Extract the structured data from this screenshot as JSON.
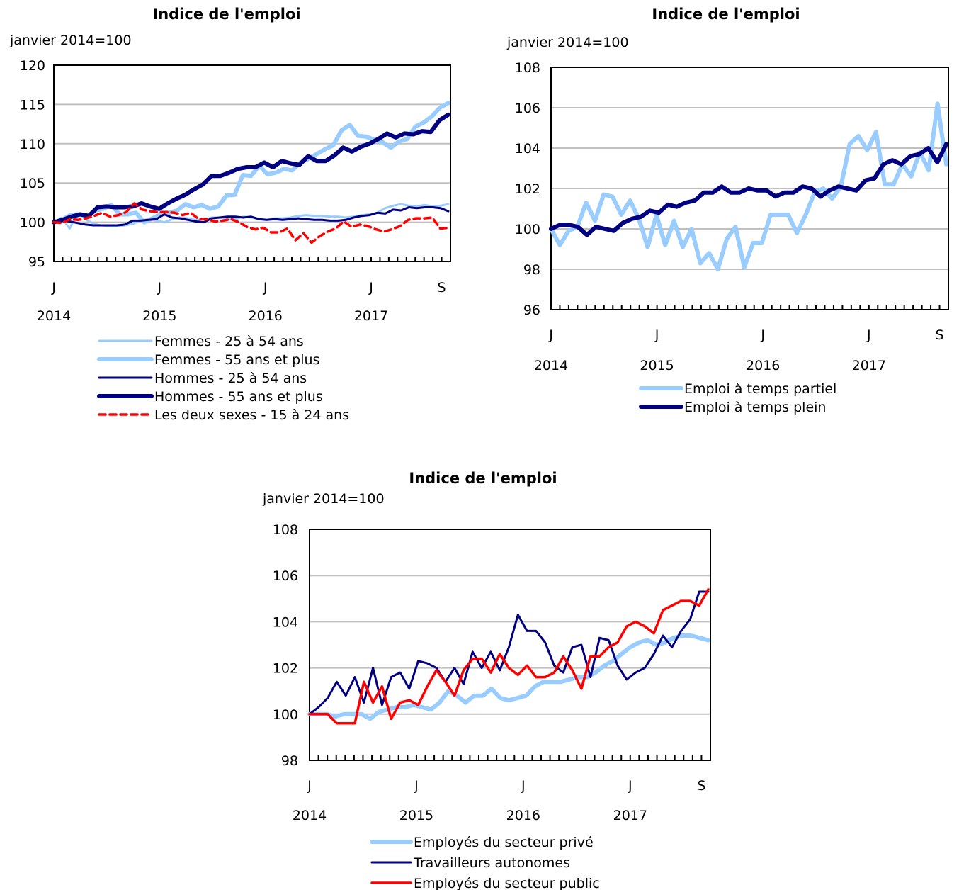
{
  "chart_data": [
    {
      "type": "line",
      "title": "Indice de l'emploi",
      "unit_label": "janvier 2014=100",
      "ylim": [
        95,
        120
      ],
      "y_ticks": [
        95,
        100,
        105,
        110,
        115,
        120
      ],
      "x_tick_labels": [
        "J",
        "J",
        "J",
        "J",
        "S"
      ],
      "year_labels": [
        "2014",
        "2015",
        "2016",
        "2017"
      ],
      "grid": true,
      "legend_position": "bottom",
      "colors": {
        "light": "#99ccff",
        "dark": "#000080",
        "red": "#ff0000",
        "grid": "#c0c0c0"
      },
      "series": [
        {
          "name": "Femmes - 25 à 54 ans",
          "style": "light-thin",
          "values": [
            100,
            100.6,
            99.2,
            101.1,
            100.4,
            99.8,
            99.6,
            99.5,
            99.5,
            99.6,
            99.8,
            100.2,
            100.4,
            100.2,
            100.0,
            100.4,
            100.6,
            100.5,
            100.3,
            100.3,
            100.6,
            100.6,
            100.4,
            100.4,
            100.7,
            100.6,
            100.4,
            100.3,
            100.5,
            100.5,
            100.6,
            100.8,
            100.9,
            100.8,
            100.8,
            100.7,
            100.7,
            100.6,
            100.7,
            100.9,
            101.0,
            101.2,
            101.8,
            102.1,
            102.3,
            102.1,
            102.0,
            102.2,
            102.0,
            102.1,
            102.3
          ]
        },
        {
          "name": "Femmes - 55 ans et plus",
          "style": "light-thick",
          "values": [
            100,
            100.3,
            100.9,
            101.0,
            100.7,
            101.5,
            101.7,
            102.2,
            101.0,
            101.0,
            101.2,
            100.0,
            100.5,
            101.0,
            101.2,
            101.5,
            102.3,
            101.9,
            102.2,
            101.7,
            102.0,
            103.4,
            103.5,
            106.0,
            105.9,
            107.2,
            106.1,
            106.3,
            106.8,
            106.6,
            107.6,
            108.1,
            108.7,
            109.3,
            109.8,
            111.7,
            112.4,
            111.0,
            110.9,
            110.5,
            110.2,
            109.5,
            110.3,
            110.6,
            112.2,
            112.7,
            113.5,
            114.6,
            115.2
          ]
        },
        {
          "name": "Hommes - 25 à 54 ans",
          "style": "dark-thin",
          "values": [
            100,
            100.2,
            100.1,
            99.9,
            99.7,
            99.6,
            99.6,
            99.6,
            99.6,
            99.7,
            100.2,
            100.2,
            100.3,
            100.4,
            101.0,
            100.6,
            100.5,
            100.3,
            100.1,
            100.0,
            100.5,
            100.6,
            100.7,
            100.7,
            100.6,
            100.7,
            100.4,
            100.3,
            100.4,
            100.3,
            100.4,
            100.5,
            100.4,
            100.3,
            100.3,
            100.2,
            100.2,
            100.3,
            100.6,
            100.8,
            100.9,
            101.2,
            101.1,
            101.6,
            101.5,
            101.9,
            101.8,
            101.9,
            101.9,
            101.8,
            101.4
          ]
        },
        {
          "name": "Hommes - 55 ans et plus",
          "style": "dark-thick",
          "values": [
            100,
            100.3,
            100.7,
            101.0,
            100.8,
            101.9,
            102.0,
            101.9,
            101.9,
            102.0,
            102.4,
            102.0,
            101.7,
            102.4,
            103.0,
            103.5,
            104.2,
            104.8,
            105.9,
            105.9,
            106.3,
            106.8,
            107.0,
            107.0,
            107.6,
            107.0,
            107.8,
            107.5,
            107.3,
            108.4,
            107.8,
            107.8,
            108.5,
            109.5,
            109.0,
            109.6,
            110.0,
            110.6,
            111.3,
            110.8,
            111.3,
            111.2,
            111.6,
            111.5,
            113.0,
            113.7
          ]
        },
        {
          "name": "Les deux sexes - 15 à 24 ans",
          "style": "red-dashed",
          "values": [
            100,
            99.9,
            100.4,
            100.3,
            100.5,
            100.8,
            101.2,
            100.7,
            100.9,
            101.3,
            102.4,
            101.6,
            101.4,
            101.3,
            101.3,
            101.2,
            100.9,
            101.2,
            100.4,
            100.4,
            100.1,
            100.2,
            100.4,
            100.0,
            99.4,
            99.1,
            99.3,
            98.7,
            98.7,
            99.2,
            97.7,
            98.6,
            97.4,
            98.2,
            98.8,
            99.2,
            100.1,
            99.4,
            99.7,
            99.5,
            99.1,
            98.8,
            99.1,
            99.5,
            100.3,
            100.5,
            100.5,
            100.6,
            99.2,
            99.3
          ]
        }
      ]
    },
    {
      "type": "line",
      "title": "Indice de l'emploi",
      "unit_label": "janvier 2014=100",
      "ylim": [
        96,
        108
      ],
      "y_ticks": [
        96,
        98,
        100,
        102,
        104,
        106,
        108
      ],
      "x_tick_labels": [
        "J",
        "J",
        "J",
        "J",
        "S"
      ],
      "year_labels": [
        "2014",
        "2015",
        "2016",
        "2017"
      ],
      "grid": true,
      "legend_position": "bottom",
      "series": [
        {
          "name": "Emploi à temps partiel",
          "style": "light-thick",
          "values": [
            100,
            99.2,
            99.9,
            100.1,
            101.3,
            100.4,
            101.7,
            101.6,
            100.7,
            101.4,
            100.5,
            99.1,
            100.7,
            99.2,
            100.4,
            99.1,
            100.0,
            98.3,
            98.8,
            98.0,
            99.5,
            100.1,
            98.1,
            99.3,
            99.3,
            100.7,
            100.7,
            100.7,
            99.8,
            100.7,
            101.8,
            102.0,
            101.5,
            102.1,
            104.2,
            104.6,
            103.9,
            104.8,
            102.2,
            102.2,
            103.2,
            102.6,
            103.8,
            102.9,
            106.2,
            103.2
          ]
        },
        {
          "name": "Emploi à temps plein",
          "style": "dark-thick",
          "values": [
            100,
            100.2,
            100.2,
            100.1,
            99.7,
            100.1,
            100.0,
            99.9,
            100.3,
            100.5,
            100.6,
            100.9,
            100.8,
            101.2,
            101.1,
            101.3,
            101.4,
            101.8,
            101.8,
            102.1,
            101.8,
            101.8,
            102.0,
            101.9,
            101.9,
            101.6,
            101.8,
            101.8,
            102.1,
            102.0,
            101.6,
            101.9,
            102.1,
            102.0,
            101.9,
            102.4,
            102.5,
            103.2,
            103.4,
            103.2,
            103.6,
            103.7,
            104.0,
            103.3,
            104.2
          ]
        }
      ]
    },
    {
      "type": "line",
      "title": "Indice de l'emploi",
      "unit_label": "janvier 2014=100",
      "ylim": [
        98,
        108
      ],
      "y_ticks": [
        98,
        100,
        102,
        104,
        106,
        108
      ],
      "x_tick_labels": [
        "J",
        "J",
        "J",
        "J",
        "S"
      ],
      "year_labels": [
        "2014",
        "2015",
        "2016",
        "2017"
      ],
      "grid": true,
      "legend_position": "bottom",
      "series": [
        {
          "name": "Employés du secteur privé",
          "style": "light-thick",
          "values": [
            100,
            100.0,
            100.0,
            99.9,
            100.0,
            100.0,
            100.0,
            99.8,
            100.1,
            100.2,
            100.3,
            100.3,
            100.4,
            100.3,
            100.2,
            100.5,
            101.0,
            100.8,
            100.5,
            100.8,
            100.8,
            101.1,
            100.7,
            100.6,
            100.7,
            100.8,
            101.2,
            101.4,
            101.4,
            101.4,
            101.5,
            101.6,
            101.6,
            101.8,
            102.1,
            102.3,
            102.6,
            102.9,
            103.1,
            103.2,
            103.0,
            103.1,
            103.3,
            103.4,
            103.4,
            103.3,
            103.2
          ]
        },
        {
          "name": "Travailleurs autonomes",
          "style": "dark-thin",
          "values": [
            100,
            100.3,
            100.7,
            101.4,
            100.8,
            101.6,
            100.5,
            102.0,
            100.4,
            101.6,
            101.8,
            101.1,
            102.3,
            102.2,
            102.0,
            101.4,
            102.0,
            101.3,
            102.7,
            102.0,
            102.7,
            101.9,
            102.9,
            104.3,
            103.6,
            103.6,
            103.1,
            102.1,
            101.8,
            102.9,
            103.0,
            101.6,
            103.3,
            103.2,
            102.1,
            101.5,
            101.8,
            102.0,
            102.6,
            103.4,
            102.9,
            103.6,
            104.1,
            105.3,
            105.3
          ]
        },
        {
          "name": "Employés du secteur public",
          "style": "red",
          "values": [
            100,
            100.0,
            100.0,
            99.6,
            99.6,
            99.6,
            101.4,
            100.5,
            101.2,
            99.8,
            100.5,
            100.6,
            100.4,
            101.2,
            101.9,
            101.4,
            100.8,
            101.9,
            102.4,
            102.4,
            101.8,
            102.6,
            102.0,
            101.7,
            102.1,
            101.6,
            101.6,
            101.8,
            102.5,
            101.9,
            101.1,
            102.5,
            102.5,
            102.9,
            103.1,
            103.8,
            104.0,
            103.8,
            103.5,
            104.5,
            104.7,
            104.9,
            104.9,
            104.7,
            105.4
          ]
        }
      ]
    }
  ]
}
